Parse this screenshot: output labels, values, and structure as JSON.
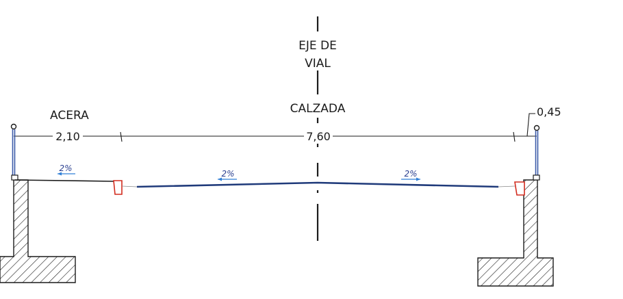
{
  "axis_label_line1": "EJE DE",
  "axis_label_line2": "VIAL",
  "roadway_label": "CALZADA",
  "sidewalk_label": "ACERA",
  "dim_sidewalk": "2,10",
  "dim_roadway": "7,60",
  "dim_right": "0,45",
  "slope_sidewalk": "2%",
  "slope_left": "2%",
  "slope_right": "2%",
  "colors": {
    "ink": "#1a1a1a",
    "pavement": "#1f3a7a",
    "slope_arrow": "#2f7fd6",
    "curb": "#d22b1e",
    "railing": "#3c5aa8"
  }
}
